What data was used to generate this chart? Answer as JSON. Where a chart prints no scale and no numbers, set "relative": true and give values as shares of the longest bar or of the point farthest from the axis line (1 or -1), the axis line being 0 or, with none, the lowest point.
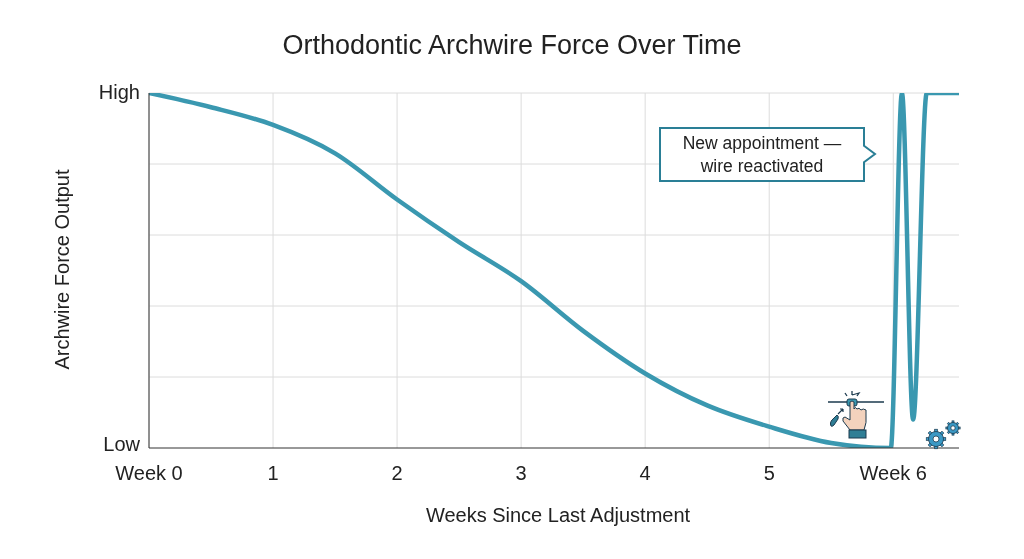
{
  "chart_data": {
    "type": "line",
    "title": "Orthodontic Archwire Force Over Time",
    "xlabel": "Weeks Since Last Adjustment",
    "ylabel": "Archwire Force Output",
    "x": [
      0,
      0.5,
      1,
      1.5,
      2,
      2.5,
      3,
      3.5,
      4,
      4.5,
      5,
      5.5,
      5.98,
      6.07,
      6.16,
      6.27,
      6.53
    ],
    "series": [
      {
        "color": "#3a98b0",
        "values": [
          1.0,
          0.96,
          0.91,
          0.83,
          0.7,
          0.58,
          0.47,
          0.33,
          0.21,
          0.12,
          0.06,
          0.014,
          0,
          1.0,
          0.08,
          1.0,
          1.0
        ]
      }
    ],
    "relative": true,
    "xlim": [
      0,
      6.53
    ],
    "xticks": [
      {
        "value": 0,
        "label": "Week 0"
      },
      1,
      2,
      3,
      4,
      5,
      {
        "value": 6,
        "label": "Week 6"
      }
    ],
    "grid": true,
    "annotations": [
      "New appointment — wire reactivated",
      "High",
      "Low"
    ]
  }
}
